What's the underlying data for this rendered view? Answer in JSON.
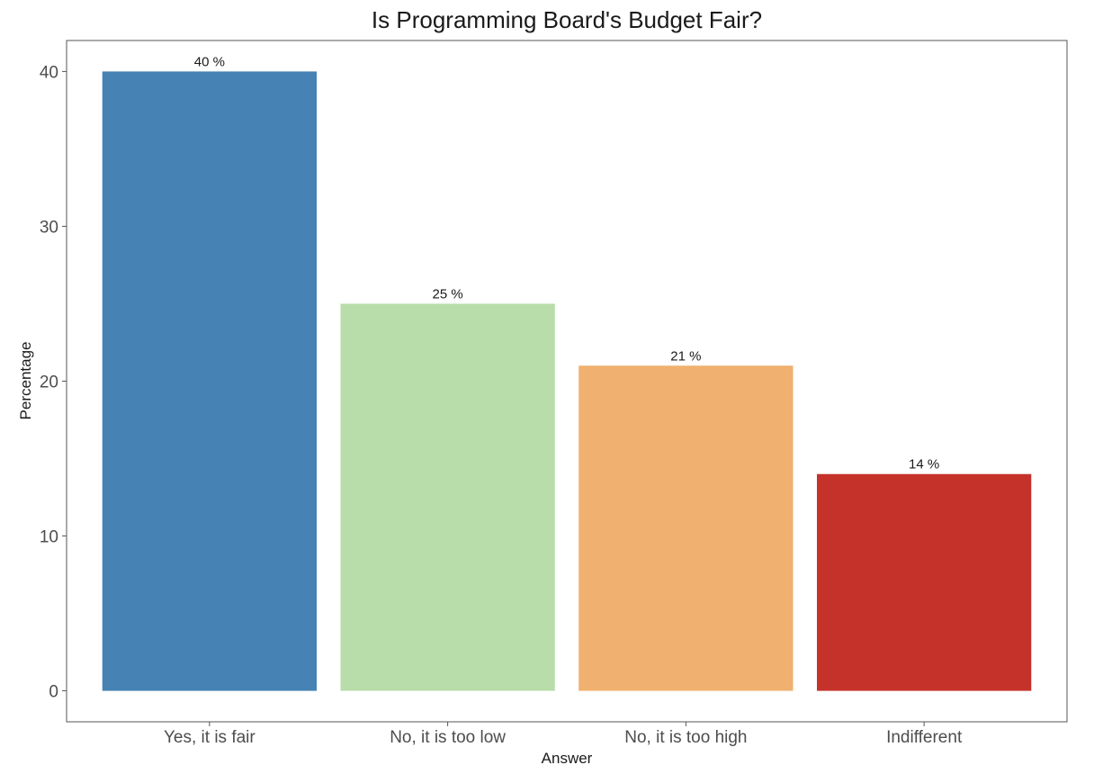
{
  "chart_data": {
    "type": "bar",
    "title": "Is Programming Board's Budget Fair?",
    "xlabel": "Answer",
    "ylabel": "Percentage",
    "categories": [
      "Yes, it is fair",
      "No, it is too low",
      "No, it is too high",
      "Indifferent"
    ],
    "values": [
      40,
      25,
      21,
      14
    ],
    "data_labels": [
      "40 %",
      "25 %",
      "21 %",
      "14 %"
    ],
    "colors": [
      "#4682b4",
      "#b8ddaa",
      "#f0b06f",
      "#c4322a"
    ],
    "ylim": [
      -2,
      42
    ],
    "yticks": [
      0,
      10,
      20,
      30,
      40
    ],
    "grid": false,
    "legend": "none"
  }
}
